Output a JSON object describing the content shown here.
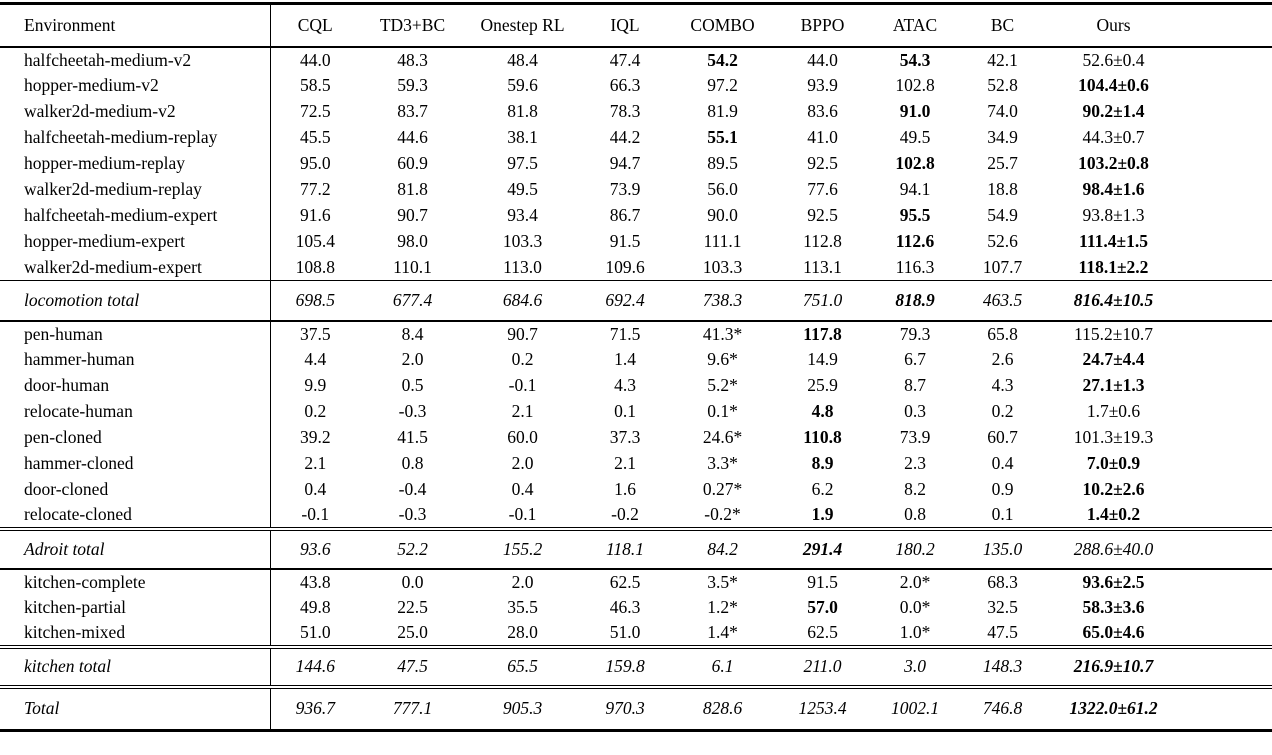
{
  "table": {
    "header": [
      "Environment",
      "CQL",
      "TD3+BC",
      "Onestep RL",
      "IQL",
      "COMBO",
      "BPPO",
      "ATAC",
      "BC",
      "Ours"
    ],
    "sections": [
      {
        "name": "locomotion",
        "rows": [
          {
            "env": "halfcheetah-medium-v2",
            "values": [
              "44.0",
              "48.3",
              "48.4",
              "47.4",
              "54.2",
              "44.0",
              "54.3",
              "42.1",
              "52.6±0.4"
            ],
            "bold": [
              4,
              6
            ]
          },
          {
            "env": "hopper-medium-v2",
            "values": [
              "58.5",
              "59.3",
              "59.6",
              "66.3",
              "97.2",
              "93.9",
              "102.8",
              "52.8",
              "104.4±0.6"
            ],
            "bold": [
              8
            ]
          },
          {
            "env": "walker2d-medium-v2",
            "values": [
              "72.5",
              "83.7",
              "81.8",
              "78.3",
              "81.9",
              "83.6",
              "91.0",
              "74.0",
              "90.2±1.4"
            ],
            "bold": [
              6,
              8
            ]
          },
          {
            "env": "halfcheetah-medium-replay",
            "values": [
              "45.5",
              "44.6",
              "38.1",
              "44.2",
              "55.1",
              "41.0",
              "49.5",
              "34.9",
              "44.3±0.7"
            ],
            "bold": [
              4
            ]
          },
          {
            "env": "hopper-medium-replay",
            "values": [
              "95.0",
              "60.9",
              "97.5",
              "94.7",
              "89.5",
              "92.5",
              "102.8",
              "25.7",
              "103.2±0.8"
            ],
            "bold": [
              6,
              8
            ]
          },
          {
            "env": "walker2d-medium-replay",
            "values": [
              "77.2",
              "81.8",
              "49.5",
              "73.9",
              "56.0",
              "77.6",
              "94.1",
              "18.8",
              "98.4±1.6"
            ],
            "bold": [
              8
            ]
          },
          {
            "env": "halfcheetah-medium-expert",
            "values": [
              "91.6",
              "90.7",
              "93.4",
              "86.7",
              "90.0",
              "92.5",
              "95.5",
              "54.9",
              "93.8±1.3"
            ],
            "bold": [
              6
            ]
          },
          {
            "env": "hopper-medium-expert",
            "values": [
              "105.4",
              "98.0",
              "103.3",
              "91.5",
              "111.1",
              "112.8",
              "112.6",
              "52.6",
              "111.4±1.5"
            ],
            "bold": [
              6,
              8
            ]
          },
          {
            "env": "walker2d-medium-expert",
            "values": [
              "108.8",
              "110.1",
              "113.0",
              "109.6",
              "103.3",
              "113.1",
              "116.3",
              "107.7",
              "118.1±2.2"
            ],
            "bold": [
              8
            ]
          }
        ],
        "total": {
          "env": "locomotion total",
          "values": [
            "698.5",
            "677.4",
            "684.6",
            "692.4",
            "738.3",
            "751.0",
            "818.9",
            "463.5",
            "816.4±10.5"
          ],
          "bold": [
            6,
            8
          ]
        }
      },
      {
        "name": "adroit",
        "rows": [
          {
            "env": "pen-human",
            "values": [
              "37.5",
              "8.4",
              "90.7",
              "71.5",
              "41.3*",
              "117.8",
              "79.3",
              "65.8",
              "115.2±10.7"
            ],
            "bold": [
              5
            ]
          },
          {
            "env": "hammer-human",
            "values": [
              "4.4",
              "2.0",
              "0.2",
              "1.4",
              "9.6*",
              "14.9",
              "6.7",
              "2.6",
              "24.7±4.4"
            ],
            "bold": [
              8
            ]
          },
          {
            "env": "door-human",
            "values": [
              "9.9",
              "0.5",
              "-0.1",
              "4.3",
              "5.2*",
              "25.9",
              "8.7",
              "4.3",
              "27.1±1.3"
            ],
            "bold": [
              8
            ]
          },
          {
            "env": "relocate-human",
            "values": [
              "0.2",
              "-0.3",
              "2.1",
              "0.1",
              "0.1*",
              "4.8",
              "0.3",
              "0.2",
              "1.7±0.6"
            ],
            "bold": [
              5
            ]
          },
          {
            "env": "pen-cloned",
            "values": [
              "39.2",
              "41.5",
              "60.0",
              "37.3",
              "24.6*",
              "110.8",
              "73.9",
              "60.7",
              "101.3±19.3"
            ],
            "bold": [
              5
            ]
          },
          {
            "env": "hammer-cloned",
            "values": [
              "2.1",
              "0.8",
              "2.0",
              "2.1",
              "3.3*",
              "8.9",
              "2.3",
              "0.4",
              "7.0±0.9"
            ],
            "bold": [
              5,
              8
            ]
          },
          {
            "env": "door-cloned",
            "values": [
              "0.4",
              "-0.4",
              "0.4",
              "1.6",
              "0.27*",
              "6.2",
              "8.2",
              "0.9",
              "10.2±2.6"
            ],
            "bold": [
              8
            ]
          },
          {
            "env": "relocate-cloned",
            "values": [
              "-0.1",
              "-0.3",
              "-0.1",
              "-0.2",
              "-0.2*",
              "1.9",
              "0.8",
              "0.1",
              "1.4±0.2"
            ],
            "bold": [
              5,
              8
            ]
          }
        ],
        "total": {
          "env": "Adroit total",
          "values": [
            "93.6",
            "52.2",
            "155.2",
            "118.1",
            "84.2",
            "291.4",
            "180.2",
            "135.0",
            "288.6±40.0"
          ],
          "bold": [
            5
          ]
        }
      },
      {
        "name": "kitchen",
        "rows": [
          {
            "env": "kitchen-complete",
            "values": [
              "43.8",
              "0.0",
              "2.0",
              "62.5",
              "3.5*",
              "91.5",
              "2.0*",
              "68.3",
              "93.6±2.5"
            ],
            "bold": [
              8
            ]
          },
          {
            "env": "kitchen-partial",
            "values": [
              "49.8",
              "22.5",
              "35.5",
              "46.3",
              "1.2*",
              "57.0",
              "0.0*",
              "32.5",
              "58.3±3.6"
            ],
            "bold": [
              5,
              8
            ]
          },
          {
            "env": "kitchen-mixed",
            "values": [
              "51.0",
              "25.0",
              "28.0",
              "51.0",
              "1.4*",
              "62.5",
              "1.0*",
              "47.5",
              "65.0±4.6"
            ],
            "bold": [
              8
            ]
          }
        ],
        "total": {
          "env": "kitchen total",
          "values": [
            "144.6",
            "47.5",
            "65.5",
            "159.8",
            "6.1",
            "211.0",
            "3.0",
            "148.3",
            "216.9±10.7"
          ],
          "bold": [
            8
          ]
        }
      }
    ],
    "grand_total": {
      "env": "Total",
      "values": [
        "936.7",
        "777.1",
        "905.3",
        "970.3",
        "828.6",
        "1253.4",
        "1002.1",
        "746.8",
        "1322.0±61.2"
      ],
      "bold": [
        8
      ]
    }
  }
}
